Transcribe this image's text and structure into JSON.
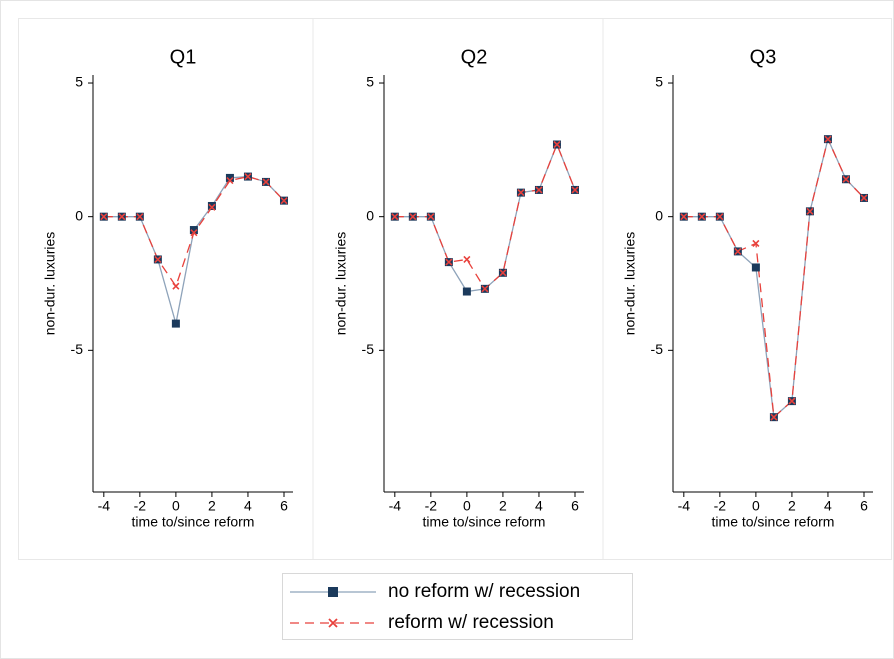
{
  "chart_data": [
    {
      "type": "line",
      "title": "Q1",
      "xlabel": "time to/since reform",
      "ylabel": "non-dur. luxuries",
      "x": [
        -4,
        -3,
        -2,
        -1,
        0,
        1,
        2,
        3,
        4,
        5,
        6
      ],
      "series": [
        {
          "name": "no reform w/ recession",
          "color": "#1b3a5c",
          "line_color": "#8ea3ba",
          "marker": "square",
          "dashed": false,
          "values": [
            0,
            0,
            0,
            -1.6,
            -4.0,
            -0.5,
            0.4,
            1.45,
            1.5,
            1.3,
            0.6
          ]
        },
        {
          "name": "reform w/ recession",
          "color": "#e8413c",
          "line_color": "#e8413c",
          "marker": "x",
          "dashed": true,
          "values": [
            0,
            0,
            0,
            -1.6,
            -2.6,
            -0.6,
            0.35,
            1.35,
            1.5,
            1.3,
            0.6
          ]
        }
      ],
      "xlim": [
        -4.6,
        6.5
      ],
      "ylim": [
        -10.3,
        5.3
      ],
      "xticks": [
        -4,
        -2,
        0,
        2,
        4,
        6
      ],
      "yticks": [
        5,
        0,
        -5
      ]
    },
    {
      "type": "line",
      "title": "Q2",
      "xlabel": "time to/since reform",
      "ylabel": "non-dur. luxuries",
      "x": [
        -4,
        -3,
        -2,
        -1,
        0,
        1,
        2,
        3,
        4,
        5,
        6
      ],
      "series": [
        {
          "name": "no reform w/ recession",
          "color": "#1b3a5c",
          "line_color": "#8ea3ba",
          "marker": "square",
          "dashed": false,
          "values": [
            0,
            0,
            0,
            -1.7,
            -2.8,
            -2.7,
            -2.1,
            0.9,
            1.0,
            2.7,
            1.0
          ]
        },
        {
          "name": "reform w/ recession",
          "color": "#e8413c",
          "line_color": "#e8413c",
          "marker": "x",
          "dashed": true,
          "values": [
            0,
            0,
            0,
            -1.7,
            -1.6,
            -2.7,
            -2.1,
            0.9,
            1.0,
            2.7,
            1.0
          ]
        }
      ],
      "xlim": [
        -4.6,
        6.5
      ],
      "ylim": [
        -10.3,
        5.3
      ],
      "xticks": [
        -4,
        -2,
        0,
        2,
        4,
        6
      ],
      "yticks": [
        5,
        0,
        -5
      ]
    },
    {
      "type": "line",
      "title": "Q3",
      "xlabel": "time to/since reform",
      "ylabel": "non-dur. luxuries",
      "x": [
        -4,
        -3,
        -2,
        -1,
        0,
        1,
        2,
        3,
        4,
        5,
        6
      ],
      "series": [
        {
          "name": "no reform w/ recession",
          "color": "#1b3a5c",
          "line_color": "#8ea3ba",
          "marker": "square",
          "dashed": false,
          "values": [
            0,
            0,
            0,
            -1.3,
            -1.9,
            -7.5,
            -6.9,
            0.2,
            2.9,
            1.4,
            0.7
          ]
        },
        {
          "name": "reform w/ recession",
          "color": "#e8413c",
          "line_color": "#e8413c",
          "marker": "x",
          "dashed": true,
          "values": [
            0,
            0,
            0,
            -1.3,
            -1.0,
            -7.5,
            -6.9,
            0.2,
            2.9,
            1.4,
            0.7
          ]
        }
      ],
      "xlim": [
        -4.6,
        6.5
      ],
      "ylim": [
        -10.3,
        5.3
      ],
      "xticks": [
        -4,
        -2,
        0,
        2,
        4,
        6
      ],
      "yticks": [
        5,
        0,
        -5
      ]
    }
  ]
}
